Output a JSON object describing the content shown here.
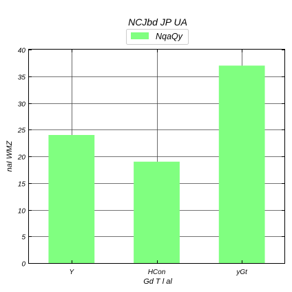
{
  "chart_data": {
    "type": "bar",
    "title": "NCJbd  JP UA",
    "xlabel": "Gd T l al",
    "ylabel": "naI WMZ",
    "categories": [
      "Y",
      "HCon",
      "yGt"
    ],
    "series": [
      {
        "name": "NqaQy",
        "values": [
          24,
          19,
          37
        ],
        "color": "#80ff80"
      }
    ],
    "ylim": [
      0,
      40
    ],
    "yticks": [
      0,
      5,
      10,
      15,
      20,
      25,
      30,
      35,
      40
    ],
    "grid": true,
    "legend": "top-center"
  }
}
